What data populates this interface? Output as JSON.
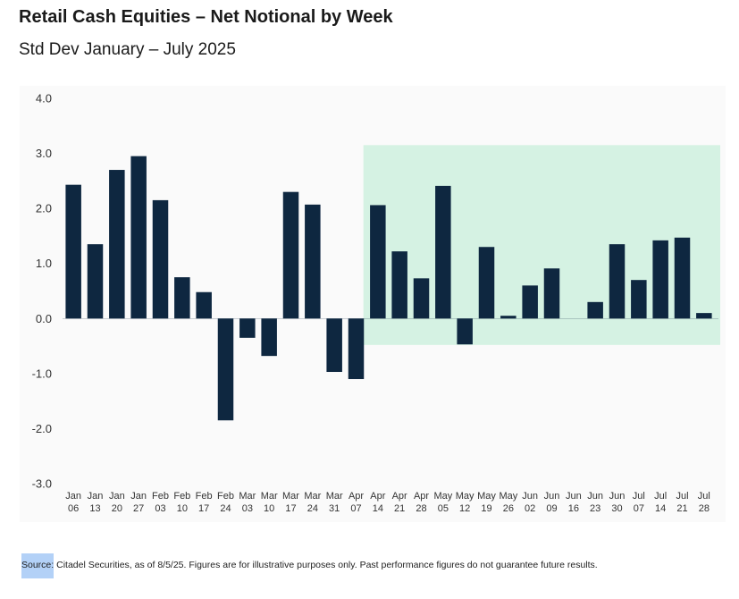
{
  "header": {
    "title": "Retail Cash Equities – Net Notional by Week",
    "subtitle": "Std Dev January – July 2025"
  },
  "footer": {
    "source_label": "Source:",
    "source_text": " Citadel Securities, as of 8/5/25. Figures are for illustrative purposes only. Past performance figures do not guarantee future results."
  },
  "colors": {
    "bar": "#0e2740",
    "highlight": "#d5f2e3",
    "plot_bg": "#fafafa",
    "axis_text": "#333333"
  },
  "chart_data": {
    "type": "bar",
    "title": "Retail Cash Equities – Net Notional by Week",
    "subtitle": "Std Dev January – July 2025",
    "xlabel": "",
    "ylabel": "",
    "ylim": [
      -3.0,
      4.0
    ],
    "yticks": [
      4.0,
      3.0,
      2.0,
      1.0,
      0.0,
      -1.0,
      -2.0,
      -3.0
    ],
    "ytick_labels": [
      "4.0",
      "3.0",
      "2.0",
      "1.0",
      "0.0",
      "-1.0",
      "-2.0",
      "-3.0"
    ],
    "categories": [
      [
        "Jan",
        "06"
      ],
      [
        "Jan",
        "13"
      ],
      [
        "Jan",
        "20"
      ],
      [
        "Jan",
        "27"
      ],
      [
        "Feb",
        "03"
      ],
      [
        "Feb",
        "10"
      ],
      [
        "Feb",
        "17"
      ],
      [
        "Feb",
        "24"
      ],
      [
        "Mar",
        "03"
      ],
      [
        "Mar",
        "10"
      ],
      [
        "Mar",
        "17"
      ],
      [
        "Mar",
        "24"
      ],
      [
        "Mar",
        "31"
      ],
      [
        "Apr",
        "07"
      ],
      [
        "Apr",
        "14"
      ],
      [
        "Apr",
        "21"
      ],
      [
        "Apr",
        "28"
      ],
      [
        "May",
        "05"
      ],
      [
        "May",
        "12"
      ],
      [
        "May",
        "19"
      ],
      [
        "May",
        "26"
      ],
      [
        "Jun",
        "02"
      ],
      [
        "Jun",
        "09"
      ],
      [
        "Jun",
        "16"
      ],
      [
        "Jun",
        "23"
      ],
      [
        "Jun",
        "30"
      ],
      [
        "Jul",
        "07"
      ],
      [
        "Jul",
        "14"
      ],
      [
        "Jul",
        "21"
      ],
      [
        "Jul",
        "28"
      ]
    ],
    "values": [
      2.43,
      1.35,
      2.7,
      2.95,
      2.15,
      0.75,
      0.48,
      -1.85,
      -0.35,
      -0.68,
      2.3,
      2.07,
      -0.97,
      -1.1,
      2.06,
      1.22,
      0.73,
      2.41,
      -0.47,
      1.3,
      0.05,
      0.6,
      0.91,
      0.0,
      0.3,
      1.35,
      0.7,
      1.42,
      1.47,
      0.1
    ],
    "highlight_region": {
      "from_category_index": 14,
      "to_category_index": 29,
      "y_from": -0.48,
      "y_to": 3.15
    },
    "grid": false,
    "legend": "none"
  }
}
